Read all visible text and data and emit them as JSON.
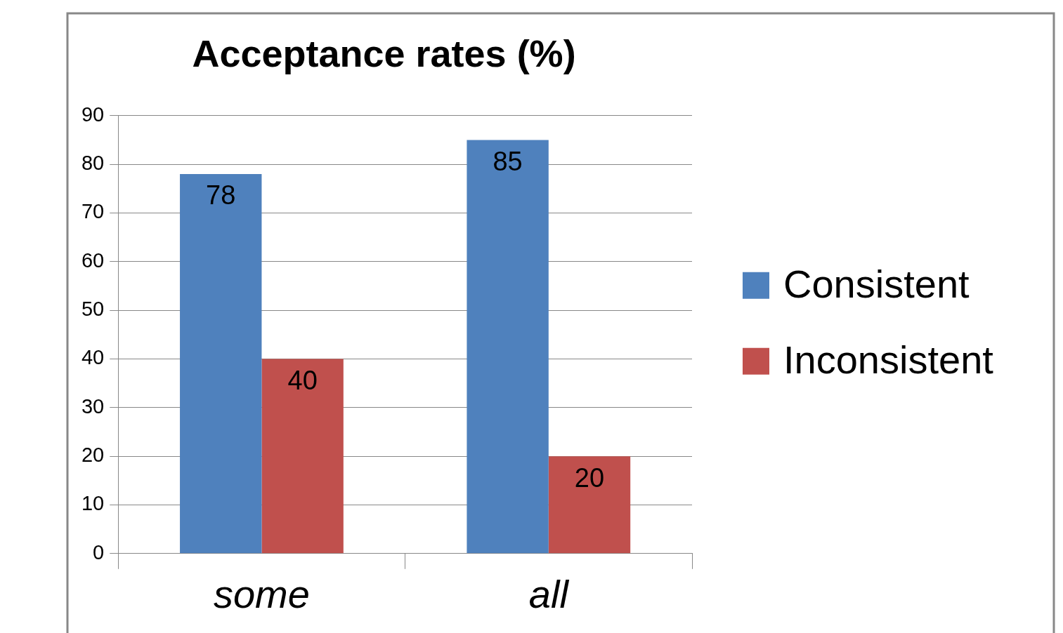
{
  "chart_data": {
    "type": "bar",
    "title": "Acceptance rates (%)",
    "categories": [
      "some",
      "all"
    ],
    "series": [
      {
        "name": "Consistent",
        "color": "#4f81bd",
        "values": [
          78,
          85
        ]
      },
      {
        "name": "Inconsistent",
        "color": "#c0504d",
        "values": [
          40,
          20
        ]
      }
    ],
    "ylim": [
      0,
      90
    ],
    "yticks": [
      0,
      10,
      20,
      30,
      40,
      50,
      60,
      70,
      80,
      90
    ],
    "grid": "y",
    "legend": "right",
    "data_labels": true
  }
}
